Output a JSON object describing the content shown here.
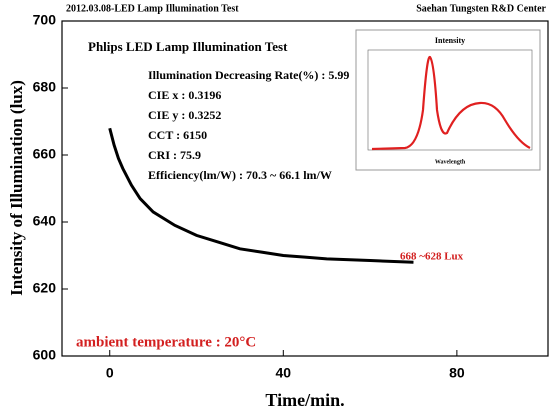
{
  "chart_data": {
    "type": "line",
    "header_left": "2012.03.08-LED Lamp Illumination Test",
    "header_right": "Saehan Tungsten R&D Center",
    "x_label": "Time/min.",
    "y_label": "Intensity of Illumination (lux)",
    "x": [
      0,
      1,
      2,
      3,
      5,
      7,
      10,
      15,
      20,
      25,
      30,
      35,
      40,
      45,
      50,
      60,
      70
    ],
    "series": [
      {
        "color": "#000000",
        "values": [
          668,
          663,
          659,
          656,
          651,
          647,
          643,
          639,
          636,
          634,
          632,
          631,
          630,
          629.5,
          629,
          628.5,
          628
        ]
      }
    ],
    "xlim": [
      -11,
      101
    ],
    "ylim": [
      600,
      700
    ],
    "xticks": [
      0,
      40,
      80
    ],
    "yticks": [
      600,
      620,
      640,
      660,
      680,
      700
    ],
    "info_title": "Phlips LED Lamp Illumination Test",
    "info_lines": [
      "Illumination Decreasing Rate(%) : 5.99",
      "CIE x : 0.3196",
      "CIE y : 0.3252",
      "CCT : 6150",
      "CRI : 75.9",
      "Efficiency(lm/W) : 70.3 ~ 66.1 lm/W"
    ],
    "range_note": "668 ~628 Lux",
    "temperature_note": "ambient temperature : 20°C",
    "inset_title": "Intensity",
    "inset_x_label": "Wavelength"
  }
}
